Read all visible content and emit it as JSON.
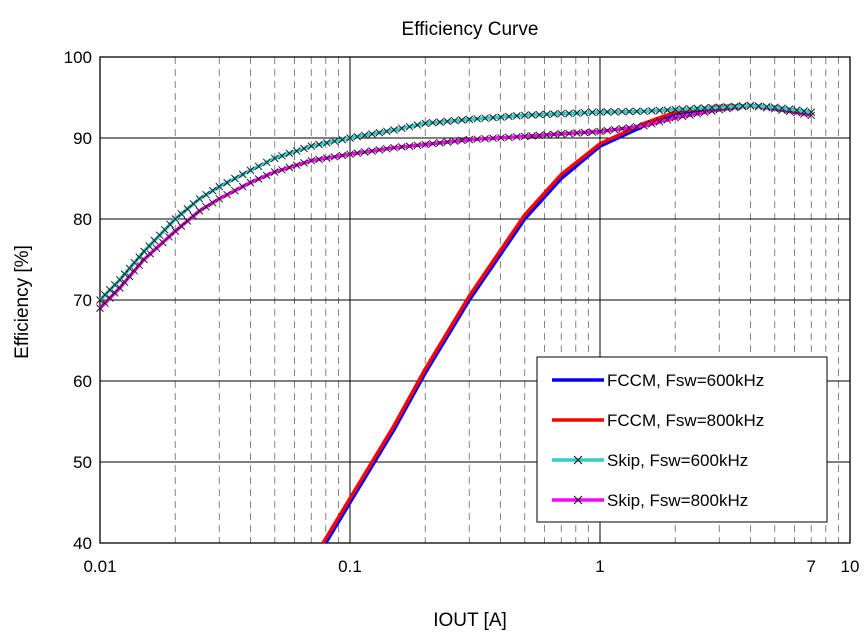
{
  "chart_data": {
    "type": "line",
    "title": "Efficiency Curve",
    "xlabel": "IOUT [A]",
    "ylabel": "Efficiency [%]",
    "x_scale": "log",
    "xlim": [
      0.01,
      10
    ],
    "ylim": [
      40,
      100
    ],
    "x_ticks": [
      0.01,
      0.1,
      1,
      7,
      10
    ],
    "x_tick_labels": [
      "0.01",
      "0.1",
      "1",
      "7",
      "10"
    ],
    "y_ticks": [
      40,
      50,
      60,
      70,
      80,
      90,
      100
    ],
    "y_tick_labels": [
      "40",
      "50",
      "60",
      "70",
      "80",
      "90",
      "100"
    ],
    "grid": true,
    "legend_position": "bottom-right",
    "series": [
      {
        "name": "FCCM, Fsw=600kHz",
        "color": "#0000ff",
        "marker": "none",
        "x": [
          0.08,
          0.1,
          0.15,
          0.2,
          0.3,
          0.5,
          0.7,
          1.0,
          1.5,
          2.0,
          3.0,
          4.0,
          5.0,
          7.0
        ],
        "y": [
          40,
          45,
          54,
          61,
          70,
          80,
          85,
          89,
          91.5,
          93,
          93.8,
          94,
          93.8,
          93
        ]
      },
      {
        "name": "FCCM, Fsw=800kHz",
        "color": "#ff0000",
        "marker": "none",
        "x": [
          0.078,
          0.1,
          0.15,
          0.2,
          0.3,
          0.5,
          0.7,
          1.0,
          1.5,
          2.0,
          3.0,
          4.0,
          5.0,
          7.0
        ],
        "y": [
          40,
          45.5,
          54.5,
          61.5,
          70.5,
          80.5,
          85.5,
          89.3,
          91.8,
          93.2,
          93.9,
          94,
          93.7,
          92.8
        ]
      },
      {
        "name": "Skip, Fsw=600kHz",
        "color": "#33cccc",
        "marker": "x",
        "x": [
          0.01,
          0.012,
          0.015,
          0.02,
          0.025,
          0.03,
          0.04,
          0.05,
          0.07,
          0.1,
          0.15,
          0.2,
          0.3,
          0.5,
          0.7,
          1.0,
          1.5,
          2.0,
          3.0,
          4.0,
          5.0,
          7.0
        ],
        "y": [
          70,
          72.5,
          76,
          80,
          82.5,
          84,
          86,
          87.5,
          89,
          90,
          91,
          91.8,
          92.3,
          92.8,
          93,
          93.2,
          93.3,
          93.5,
          93.8,
          94,
          93.8,
          93.2
        ]
      },
      {
        "name": "Skip, Fsw=800kHz",
        "color": "#ff00ff",
        "marker": "x",
        "x": [
          0.01,
          0.012,
          0.015,
          0.02,
          0.025,
          0.03,
          0.04,
          0.05,
          0.07,
          0.1,
          0.15,
          0.2,
          0.3,
          0.5,
          0.7,
          1.0,
          1.5,
          2.0,
          3.0,
          4.0,
          5.0,
          7.0
        ],
        "y": [
          69,
          71.5,
          75,
          78.5,
          81,
          82.5,
          84.5,
          85.8,
          87.2,
          88,
          88.8,
          89.2,
          89.8,
          90.2,
          90.5,
          90.8,
          91.5,
          92.5,
          93.5,
          94,
          93.6,
          92.8
        ]
      }
    ]
  }
}
